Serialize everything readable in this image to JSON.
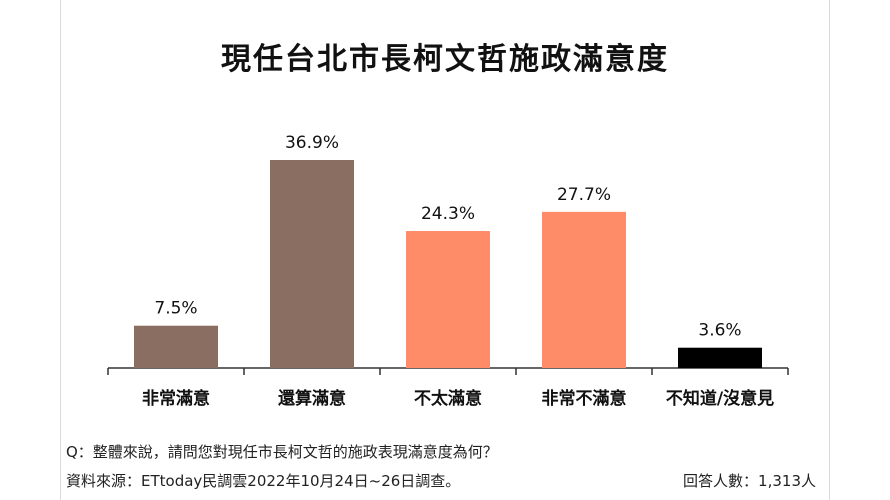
{
  "chart_data": {
    "type": "bar",
    "title": "現任台北市長柯文哲施政滿意度",
    "categories": [
      "非常滿意",
      "還算滿意",
      "不太滿意",
      "非常不滿意",
      "不知道/沒意見"
    ],
    "values": [
      7.5,
      36.9,
      24.3,
      27.7,
      3.6
    ],
    "value_labels": [
      "7.5%",
      "36.9%",
      "24.3%",
      "27.7%",
      "3.6%"
    ],
    "bar_colors": [
      "#8b6e62",
      "#8b6e62",
      "#ff8c69",
      "#ff8c69",
      "#000000"
    ],
    "ylim": [
      0,
      40
    ],
    "grid": false
  },
  "footer": {
    "question": "Q：整體來說，請問您對現任市長柯文哲的施政表現滿意度為何？",
    "source": "資料來源：ETtoday民調雲2022年10月24日~26日調查。",
    "respondents": "回答人數：1,313人"
  }
}
